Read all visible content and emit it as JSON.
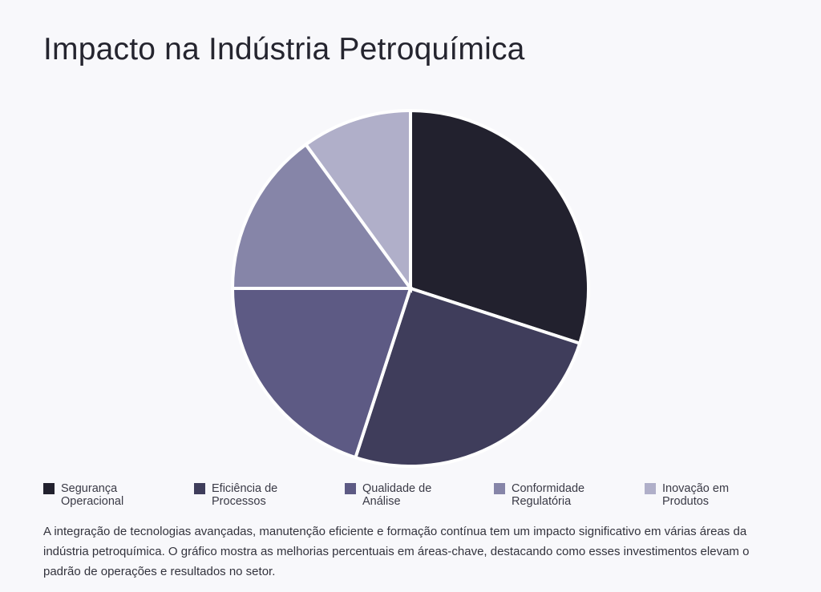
{
  "page": {
    "title": "Impacto na Indústria Petroquímica",
    "description": "A integração de tecnologias avançadas, manutenção eficiente e formação contínua tem um impacto significativo em várias áreas da indústria petroquímica. O gráfico mostra as melhorias percentuais em áreas-chave, destacando como esses investimentos elevam o padrão de operações e resultados no setor."
  },
  "chart_data": {
    "type": "pie",
    "title": "Impacto na Indústria Petroquímica",
    "categories": [
      "Segurança Operacional",
      "Eficiência de Processos",
      "Qualidade de Análise",
      "Conformidade Regulatória",
      "Inovação em Produtos"
    ],
    "values": [
      30,
      25,
      20,
      15,
      10
    ],
    "colors": [
      "#22212e",
      "#3f3d5b",
      "#5d5a84",
      "#8685a8",
      "#b0afc9"
    ],
    "legend_position": "bottom",
    "start_angle": "top, clockwise"
  }
}
